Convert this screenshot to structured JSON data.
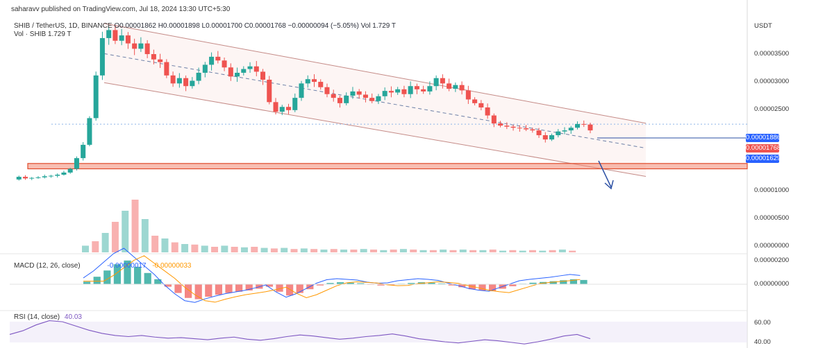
{
  "header": {
    "published_line": "saharavv published on TradingView.com, Jul 18, 2024 13:30 UTC+5:30",
    "symbol": "SHIB / TetherUS, 1D, BINANCE",
    "ohlc": "O0.00001862 H0.00001898 L0.00001700 C0.00001768 −0.00000094 (−5.05%) Vol 1.729 T",
    "volume_line": "Vol · SHIB 1.729 T",
    "macd_label": "MACD (12, 26, close)",
    "macd_v1": "-0.00000017",
    "macd_v2": "-0.00000033",
    "rsi_label": "RSI (14, close)",
    "rsi_value": "40.03"
  },
  "axis": {
    "currency": "USDT",
    "price_ticks": [
      "0.00003500",
      "0.00003000",
      "0.00002500",
      "0.00001000",
      "0.00000500",
      "0.00000000"
    ],
    "macd_ticks": [
      "0.00000200",
      "0.00000000"
    ],
    "rsi_ticks": [
      "60.00",
      "40.00"
    ],
    "tag_high": "0.00001886",
    "tag_last": "0.00001768",
    "tag_target": "0.00001629"
  },
  "colors": {
    "up": "#26a69a",
    "down": "#ef5350",
    "channel": "#c48a86",
    "support_zone": "#f28b74",
    "support_line": "#e04b2b",
    "macd_line": "#2962ff",
    "signal_line": "#ff9800",
    "rsi_line": "#7e57c2",
    "arrow": "#2a4fa3"
  },
  "chart_data": {
    "type": "candlestick",
    "symbol": "SHIB / TetherUS",
    "timeframe": "1D",
    "exchange": "BINANCE",
    "ohlc_last": {
      "open": 1.862e-05,
      "high": 1.898e-05,
      "low": 1.7e-05,
      "close": 1.768e-05
    },
    "change": -9.4e-07,
    "change_pct": -5.05,
    "volume": "1.729 T",
    "y_unit": "USDT",
    "ylim": [
      5.5e-06,
      3.85e-05
    ],
    "close_path": [
      8.5e-06,
      9e-06,
      8.7e-06,
      8.8e-06,
      8.9e-06,
      9.1e-06,
      9.2e-06,
      9.4e-06,
      9.8e-06,
      1.05e-05,
      1.25e-05,
      1.5e-05,
      2e-05,
      2.8e-05,
      3.5e-05,
      3.65e-05,
      3.45e-05,
      3.55e-05,
      3.4e-05,
      3.3e-05,
      3.4e-05,
      3.2e-05,
      3.1e-05,
      3.05e-05,
      2.8e-05,
      2.65e-05,
      2.75e-05,
      2.6e-05,
      2.7e-05,
      2.85e-05,
      3e-05,
      3.15e-05,
      3.08e-05,
      2.95e-05,
      2.78e-05,
      2.85e-05,
      2.92e-05,
      2.97e-05,
      2.87e-05,
      2.72e-05,
      2.3e-05,
      2.12e-05,
      2.21e-05,
      2.15e-05,
      2.38e-05,
      2.65e-05,
      2.73e-05,
      2.68e-05,
      2.58e-05,
      2.45e-05,
      2.38e-05,
      2.28e-05,
      2.42e-05,
      2.5e-05,
      2.44e-05,
      2.38e-05,
      2.32e-05,
      2.41e-05,
      2.51e-05,
      2.48e-05,
      2.54e-05,
      2.45e-05,
      2.6e-05,
      2.54e-05,
      2.5e-05,
      2.6e-05,
      2.75e-05,
      2.65e-05,
      2.55e-05,
      2.62e-05,
      2.52e-05,
      2.35e-05,
      2.28e-05,
      2.2e-05,
      2.05e-05,
      1.9e-05,
      1.86e-05,
      1.84e-05,
      1.82e-05,
      1.81e-05,
      1.79e-05,
      1.77e-05,
      1.68e-05,
      1.6e-05,
      1.68e-05,
      1.75e-05,
      1.77e-05,
      1.82e-05,
      1.89e-05,
      1.88e-05,
      1.77e-05
    ],
    "volume_series": [
      0.12,
      0.2,
      0.35,
      0.55,
      0.75,
      0.95,
      0.6,
      0.3,
      0.25,
      0.18,
      0.15,
      0.14,
      0.12,
      0.1,
      0.12,
      0.1,
      0.09,
      0.1,
      0.08,
      0.07,
      0.08,
      0.06,
      0.07,
      0.06,
      0.05,
      0.06,
      0.05,
      0.05,
      0.06,
      0.05,
      0.04,
      0.05,
      0.06,
      0.05,
      0.04,
      0.04,
      0.05,
      0.04,
      0.05,
      0.04,
      0.04,
      0.05,
      0.03,
      0.04,
      0.03,
      0.04,
      0.03,
      0.04,
      0.05,
      0.03
    ],
    "macd_hist": [
      0.1,
      0.3,
      0.55,
      0.8,
      0.95,
      0.7,
      0.45,
      0.2,
      -0.1,
      -0.35,
      -0.55,
      -0.6,
      -0.5,
      -0.42,
      -0.35,
      -0.3,
      -0.25,
      -0.18,
      -0.1,
      -0.3,
      -0.45,
      -0.35,
      -0.2,
      -0.05,
      0.05,
      0.08,
      0.06,
      0.04,
      -0.02,
      -0.05,
      -0.04,
      0.02,
      0.05,
      0.08,
      0.06,
      0.03,
      -0.05,
      -0.12,
      -0.2,
      -0.25,
      -0.28,
      -0.18,
      -0.08,
      0.02,
      0.06,
      0.09,
      0.12,
      0.16,
      0.2,
      0.17
    ],
    "rsi": [
      48,
      55,
      66,
      74,
      72,
      64,
      56,
      50,
      46,
      44,
      46,
      43,
      41,
      42,
      40,
      38,
      41,
      43,
      39,
      37,
      40,
      44,
      47,
      45,
      42,
      39,
      41,
      44,
      46,
      49,
      45,
      40,
      37,
      34,
      32,
      35,
      38,
      36,
      33,
      30,
      34,
      39,
      45,
      48,
      40
    ],
    "annotations": {
      "channel_upper": [
        [
          3.775e-05,
          0
        ],
        [
          1.905e-05,
          1
        ]
      ],
      "channel_lower": [
        [
          2.665e-05,
          0
        ],
        [
          9.08e-06,
          1
        ]
      ],
      "channel_mid": [
        [
          3.208e-05,
          0
        ],
        [
          1.438e-05,
          1
        ]
      ],
      "support_zone": [
        1.05e-05,
        1.15e-05
      ],
      "target_level": 1.629e-05,
      "dotted_level": 1.886e-05
    }
  }
}
